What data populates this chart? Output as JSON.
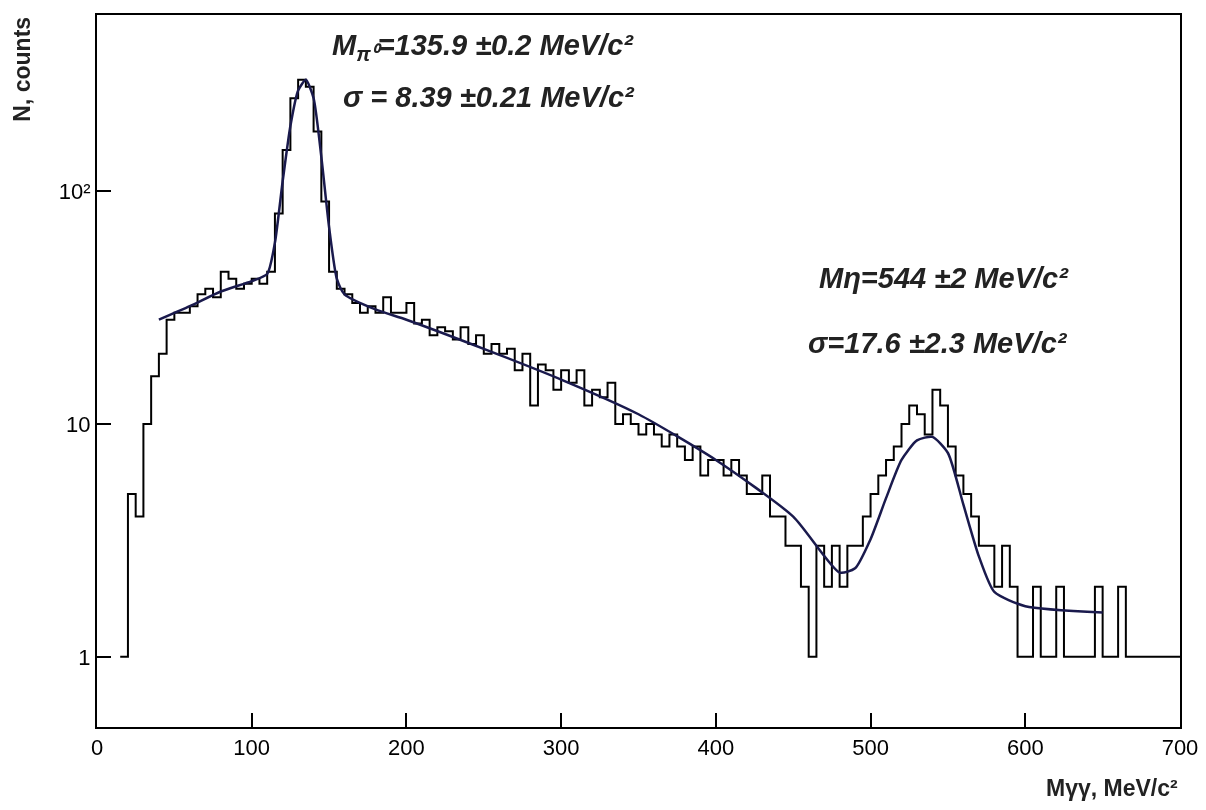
{
  "chart_data": {
    "type": "histogram",
    "xlabel": "Mγγ, MeV/c²",
    "ylabel": "N, counts",
    "log": "y",
    "grid": false,
    "line_style": "solid",
    "marker": "none",
    "xlim": [
      0,
      700
    ],
    "xticks": [
      0,
      100,
      200,
      300,
      400,
      500,
      600,
      700
    ],
    "ylim": [
      0.5,
      569
    ],
    "yticks": [
      1,
      10,
      {
        "value": 100,
        "label": "10²"
      }
    ],
    "bins": [
      15,
      20,
      25,
      30,
      35,
      40,
      45,
      50,
      55,
      60,
      65,
      70,
      75,
      80,
      85,
      90,
      95,
      100,
      105,
      110,
      115,
      120,
      125,
      130,
      135,
      140,
      145,
      150,
      155,
      160,
      165,
      170,
      175,
      180,
      185,
      190,
      195,
      200,
      205,
      210,
      215,
      220,
      225,
      230,
      235,
      240,
      245,
      250,
      255,
      260,
      265,
      270,
      275,
      280,
      285,
      290,
      295,
      300,
      305,
      310,
      315,
      320,
      325,
      330,
      335,
      340,
      345,
      350,
      355,
      360,
      365,
      370,
      375,
      380,
      385,
      390,
      395,
      400,
      405,
      410,
      415,
      420,
      425,
      430,
      435,
      440,
      445,
      450,
      455,
      460,
      465,
      470,
      475,
      480,
      485,
      490,
      495,
      500,
      505,
      510,
      515,
      520,
      525,
      530,
      535,
      540,
      545,
      550,
      555,
      560,
      565,
      570,
      575,
      580,
      585,
      590,
      595,
      600,
      605,
      610,
      615,
      620,
      625,
      630,
      635,
      640,
      645,
      650,
      655,
      660,
      665,
      670,
      675,
      680,
      685,
      690,
      695,
      700
    ],
    "series": [
      {
        "color": "#000000",
        "values": [
          1,
          5,
          4,
          10,
          16,
          20,
          28,
          30,
          30,
          32,
          36,
          38,
          35,
          45,
          42,
          38,
          40,
          42,
          40,
          45,
          80,
          150,
          250,
          300,
          280,
          180,
          90,
          45,
          38,
          36,
          33,
          30,
          32,
          30,
          35,
          30,
          30,
          33,
          27,
          28,
          24,
          26,
          25,
          23,
          26,
          22,
          24,
          20,
          22,
          20,
          21,
          17,
          20,
          12,
          18,
          17,
          14,
          17,
          15,
          17,
          12,
          14,
          13,
          15,
          10,
          11,
          10,
          9,
          10,
          9,
          8,
          9,
          8,
          7,
          8,
          6,
          7,
          7,
          6,
          7,
          6,
          5,
          5,
          6,
          4,
          4,
          3,
          3,
          2,
          1,
          3,
          2,
          3,
          2,
          3,
          3,
          4,
          5,
          6,
          7,
          8,
          10,
          12,
          11,
          9,
          14,
          12,
          8,
          6,
          5,
          4,
          3,
          3,
          2,
          3,
          2,
          1,
          1,
          2,
          1,
          1,
          2,
          1,
          1,
          1,
          1,
          2,
          1,
          1,
          2,
          1,
          1,
          1,
          1,
          1,
          1,
          1
        ]
      },
      {
        "type": "line",
        "color": "#1a1a4d",
        "x": [
          40,
          60,
          80,
          100,
          110,
          115,
          120,
          125,
          130,
          135,
          140,
          145,
          150,
          155,
          160,
          180,
          200,
          250,
          300,
          350,
          400,
          450,
          480,
          490,
          500,
          510,
          520,
          530,
          540,
          550,
          560,
          570,
          580,
          600,
          650
        ],
        "values": [
          28,
          32,
          37,
          41,
          44,
          60,
          110,
          190,
          270,
          300,
          250,
          140,
          70,
          42,
          36,
          31,
          28,
          21,
          15.5,
          11,
          7,
          4,
          2.3,
          2.4,
          3.2,
          4.8,
          7,
          8.5,
          8.8,
          7.5,
          4.5,
          2.7,
          1.9,
          1.65,
          1.55
        ]
      }
    ],
    "annotations": [
      "M$_{π⁰}$=135.9 ±0.2 MeV/c²",
      "σ = 8.39 ±0.21 MeV/c²",
      "Mη=544 ±2 MeV/c²",
      "σ=17.6 ±2.3 MeV/c²"
    ]
  }
}
